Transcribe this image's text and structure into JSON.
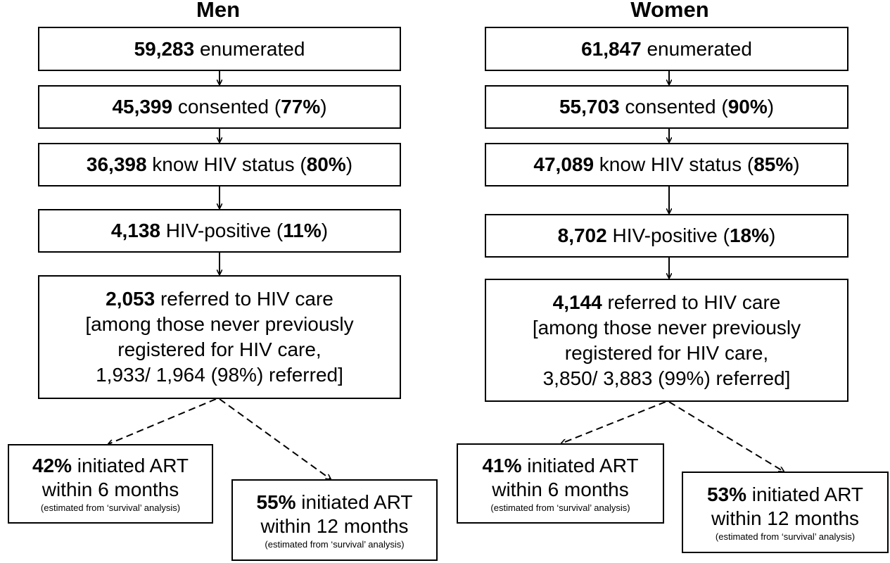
{
  "men": {
    "title": "Men",
    "enumerated": {
      "n": "59,283",
      "text": " enumerated"
    },
    "consented": {
      "n": "45,399",
      "text": " consented (",
      "pct": "77%",
      "close": ")"
    },
    "know_status": {
      "n": "36,398",
      "text": " know HIV status (",
      "pct": "80%",
      "close": ")"
    },
    "positive": {
      "n": "4,138",
      "text": " HIV-positive (",
      "pct": "11%",
      "close": ")"
    },
    "referred": {
      "n": "2,053",
      "text": " referred to HIV care",
      "line2": "[among those never previously",
      "line3": "registered for HIV care,",
      "line4": "1,933/ 1,964 (98%) referred]"
    },
    "art6": {
      "pct": "42%",
      "text": " initiated ART",
      "line2": "within 6 months",
      "note": "(estimated from ‘survival’ analysis)"
    },
    "art12": {
      "pct": "55%",
      "text": " initiated ART",
      "line2": "within 12 months",
      "note": "(estimated from ‘survival’ analysis)"
    }
  },
  "women": {
    "title": "Women",
    "enumerated": {
      "n": "61,847",
      "text": " enumerated"
    },
    "consented": {
      "n": "55,703",
      "text": " consented (",
      "pct": "90%",
      "close": ")"
    },
    "know_status": {
      "n": "47,089",
      "text": " know HIV status (",
      "pct": "85%",
      "close": ")"
    },
    "positive": {
      "n": "8,702",
      "text": " HIV-positive (",
      "pct": "18%",
      "close": ")"
    },
    "referred": {
      "n": "4,144",
      "text": " referred to HIV care",
      "line2": "[among those never previously",
      "line3": "registered for HIV care,",
      "line4": "3,850/ 3,883 (99%) referred]"
    },
    "art6": {
      "pct": "41%",
      "text": " initiated ART",
      "line2": "within 6 months",
      "note": "(estimated from ‘survival’ analysis)"
    },
    "art12": {
      "pct": "53%",
      "text": " initiated ART",
      "line2": "within 12 months",
      "note": "(estimated from ‘survival’ analysis)"
    }
  },
  "colors": {
    "line": "#000000",
    "box_border": "#000000",
    "background": "#ffffff"
  }
}
